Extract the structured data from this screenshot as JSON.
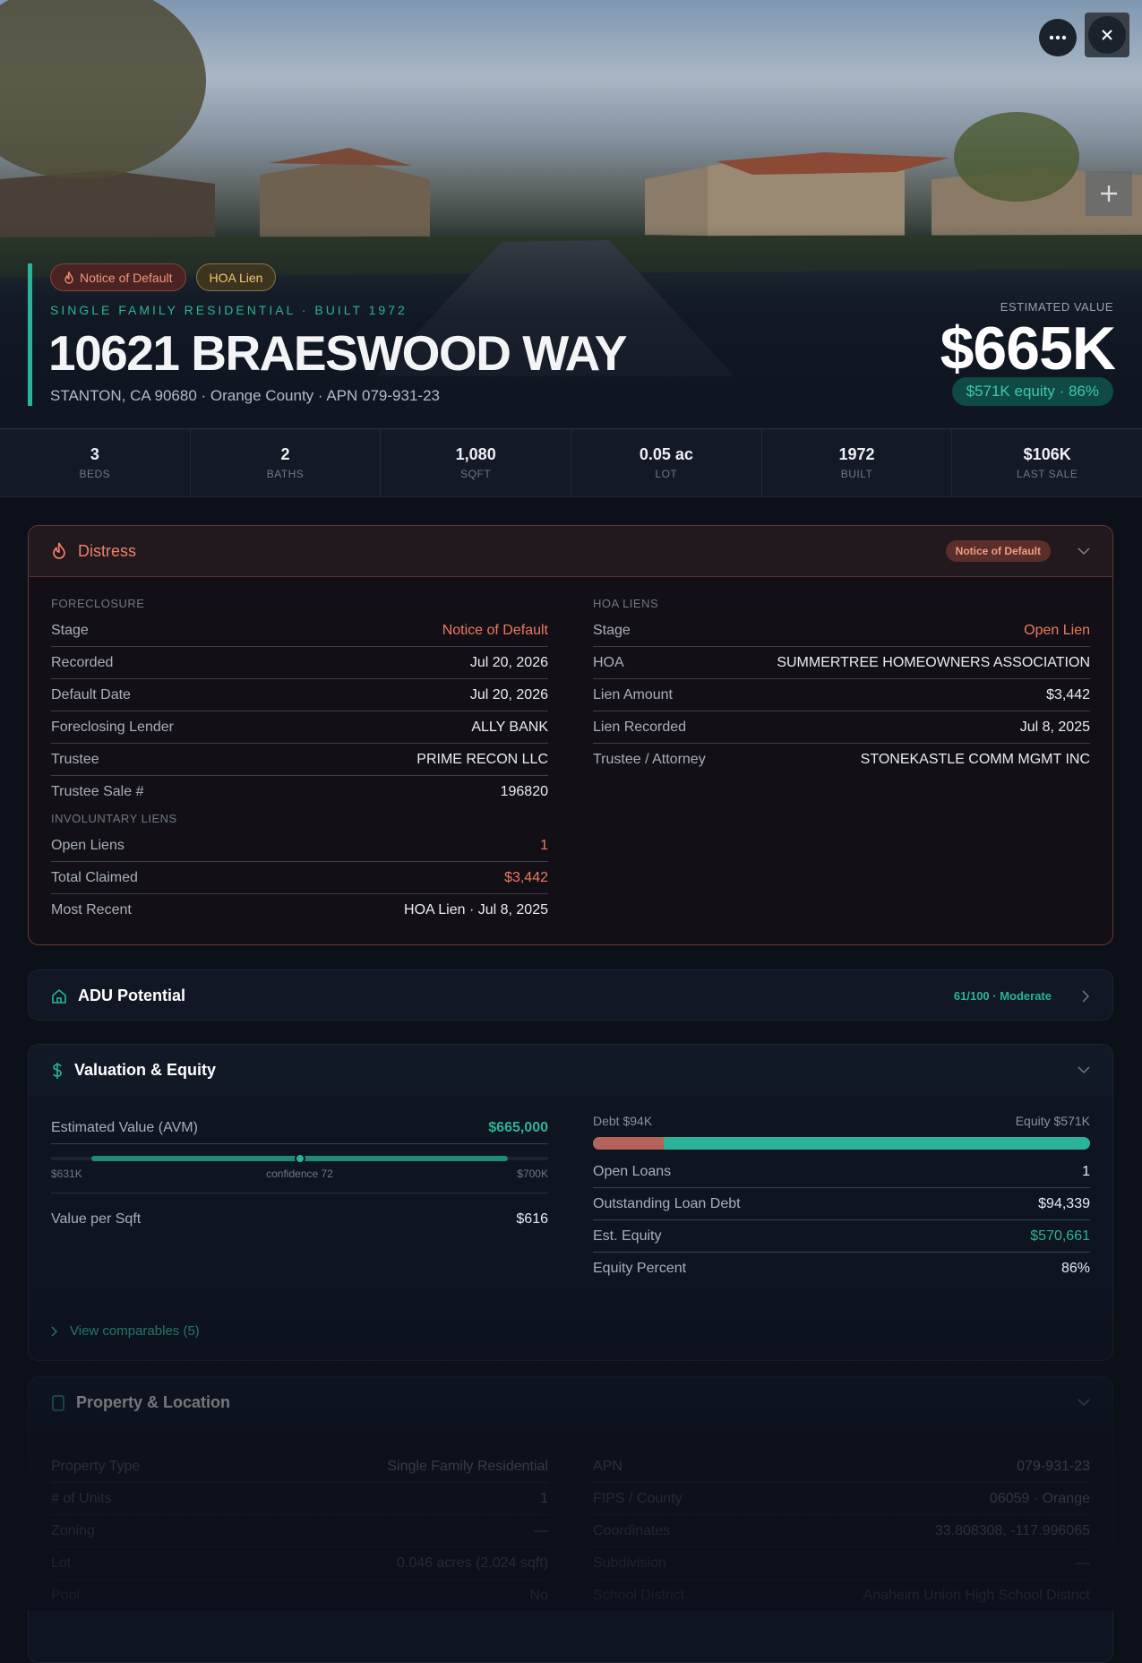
{
  "hero": {
    "badges": [
      "Notice of Default",
      "HOA Lien"
    ],
    "subtitle": "SINGLE FAMILY RESIDENTIAL · BUILT 1972",
    "title": "10621 BRAESWOOD WAY",
    "address": "STANTON, CA 90680 · Orange County · APN 079-931-23",
    "value_label": "ESTIMATED VALUE",
    "value": "$665K",
    "equity": "$571K equity · 86%"
  },
  "stats": [
    {
      "value": "3",
      "label": "BEDS"
    },
    {
      "value": "2",
      "label": "BATHS"
    },
    {
      "value": "1,080",
      "label": "SQFT"
    },
    {
      "value": "0.05 ac",
      "label": "LOT"
    },
    {
      "value": "1972",
      "label": "BUILT"
    },
    {
      "value": "$106K",
      "label": "LAST SALE"
    }
  ],
  "distress": {
    "title": "Distress",
    "badge": "Notice of Default",
    "foreclosure": {
      "heading": "FORECLOSURE",
      "rows": [
        {
          "label": "Stage",
          "value": "Notice of Default",
          "color": "#ec7a5f"
        },
        {
          "label": "Recorded",
          "value": "Jul 20, 2026"
        },
        {
          "label": "Default Date",
          "value": "Jul 20, 2026"
        },
        {
          "label": "Foreclosing Lender",
          "value": "ALLY BANK"
        },
        {
          "label": "Trustee",
          "value": "PRIME RECON LLC"
        },
        {
          "label": "Trustee Sale #",
          "value": "196820"
        }
      ]
    },
    "involuntary_liens": {
      "heading": "INVOLUNTARY LIENS",
      "rows": [
        {
          "label": "Open Liens",
          "value": "1",
          "color": "#ec7a5f"
        },
        {
          "label": "Total Claimed",
          "value": "$3,442",
          "color": "#ec7a5f"
        },
        {
          "label": "Most Recent",
          "value": "HOA Lien · Jul 8, 2025"
        }
      ]
    },
    "hoa_liens": {
      "heading": "HOA LIENS",
      "rows": [
        {
          "label": "Stage",
          "value": "Open Lien",
          "color": "#ec7a5f"
        },
        {
          "label": "HOA",
          "value": "SUMMERTREE HOMEOWNERS ASSOCIATION"
        },
        {
          "label": "Lien Amount",
          "value": "$3,442"
        },
        {
          "label": "Lien Recorded",
          "value": "Jul 8, 2025"
        },
        {
          "label": "Trustee / Attorney",
          "value": "STONEKASTLE COMM MGMT INC"
        }
      ]
    }
  },
  "adu": {
    "title": "ADU Potential",
    "score": "61/100 · Moderate"
  },
  "valuation": {
    "title": "Valuation & Equity",
    "avm_label": "Estimated Value (AVM)",
    "avm_value": "$665,000",
    "range_low": "$631K",
    "confidence": "confidence 72",
    "range_high": "$700K",
    "value_per_sqft_label": "Value per Sqft",
    "value_per_sqft": "$616",
    "debt_label": "Debt $94K",
    "equity_label": "Equity $571K",
    "rows": [
      {
        "label": "Open Loans",
        "value": "1"
      },
      {
        "label": "Outstanding Loan Debt",
        "value": "$94,339"
      },
      {
        "label": "Est. Equity",
        "value": "$570,661",
        "color": "#2bb39a"
      },
      {
        "label": "Equity Percent",
        "value": "86%"
      }
    ],
    "comparables": "View comparables (5)"
  },
  "property_location": {
    "title": "Property & Location",
    "left_rows": [
      {
        "label": "Property Type",
        "value": "Single Family Residential"
      },
      {
        "label": "# of Units",
        "value": "1"
      },
      {
        "label": "Zoning",
        "value": "—"
      },
      {
        "label": "Lot",
        "value": "0.046 acres (2,024 sqft)"
      },
      {
        "label": "Pool",
        "value": "No"
      }
    ],
    "right_rows": [
      {
        "label": "APN",
        "value": "079-931-23"
      },
      {
        "label": "FIPS / County",
        "value": "06059 · Orange"
      },
      {
        "label": "Coordinates",
        "value": "33.808308, -117.996065"
      },
      {
        "label": "Subdivision",
        "value": "—"
      },
      {
        "label": "School District",
        "value": "Anaheim Union High School District"
      }
    ]
  }
}
